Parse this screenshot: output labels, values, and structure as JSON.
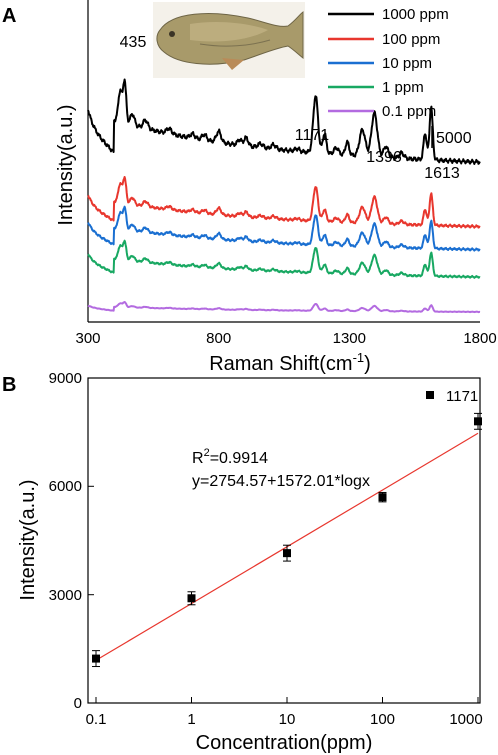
{
  "panel_labels": [
    "A",
    "B"
  ],
  "chart_data": [
    {
      "type": "line",
      "panel": "A",
      "xlabel": "Raman Shift(cm",
      "xlabel_sup": "-1",
      "xlabel_end": ")",
      "ylabel": "Intensity(a.u.)",
      "xlim": [
        300,
        1800
      ],
      "xticks": [
        "300",
        "800",
        "1300",
        "1800"
      ],
      "xtick_values": [
        300,
        800,
        1300,
        1800
      ],
      "inset_image": "fish",
      "scale_bar_label": "5000",
      "scale_bar_value": 5000,
      "peak_labels": [
        {
          "text": "435",
          "x": 435
        },
        {
          "text": "1171",
          "x": 1171
        },
        {
          "text": "1396",
          "x": 1396
        },
        {
          "text": "1613",
          "x": 1613
        }
      ],
      "series": [
        {
          "name": "1000 ppm",
          "color": "#000000",
          "baseline": 6600,
          "scale": 1.0
        },
        {
          "name": "100 ppm",
          "color": "#e8372e",
          "baseline": 3900,
          "scale": 0.6
        },
        {
          "name": "10 ppm",
          "color": "#1a6fd1",
          "baseline": 2900,
          "scale": 0.52
        },
        {
          "name": "1 ppm",
          "color": "#18a862",
          "baseline": 1700,
          "scale": 0.44
        },
        {
          "name": "0.1 ppm",
          "color": "#b36be0",
          "baseline": 300,
          "scale": 0.12
        }
      ]
    },
    {
      "type": "scatter",
      "panel": "B",
      "xlabel": "Concentration(ppm)",
      "ylabel": "Intensity(a.u.)",
      "x_scale": "log",
      "xlim": [
        0.1,
        1000
      ],
      "ylim": [
        0,
        9000
      ],
      "xticks": [
        "0.1",
        "1",
        "10",
        "100",
        "1000"
      ],
      "xtick_values": [
        0.1,
        1,
        10,
        100,
        1000
      ],
      "yticks": [
        "0",
        "3000",
        "6000",
        "9000"
      ],
      "ytick_values": [
        0,
        3000,
        6000,
        9000
      ],
      "legend": "1171",
      "annotation_r2_prefix": "R",
      "annotation_r2_sup": "2",
      "annotation_r2_value": "=0.9914",
      "annotation_eq": "y=2754.57+1572.01*logx",
      "fit": {
        "intercept": 2754.57,
        "slope": 1572.01,
        "color": "#e8372e"
      },
      "points": [
        {
          "x": 0.1,
          "y": 1230,
          "err": 220
        },
        {
          "x": 1,
          "y": 2900,
          "err": 180
        },
        {
          "x": 10,
          "y": 4150,
          "err": 220
        },
        {
          "x": 100,
          "y": 5700,
          "err": 130
        },
        {
          "x": 1000,
          "y": 7800,
          "err": 220
        }
      ]
    }
  ]
}
